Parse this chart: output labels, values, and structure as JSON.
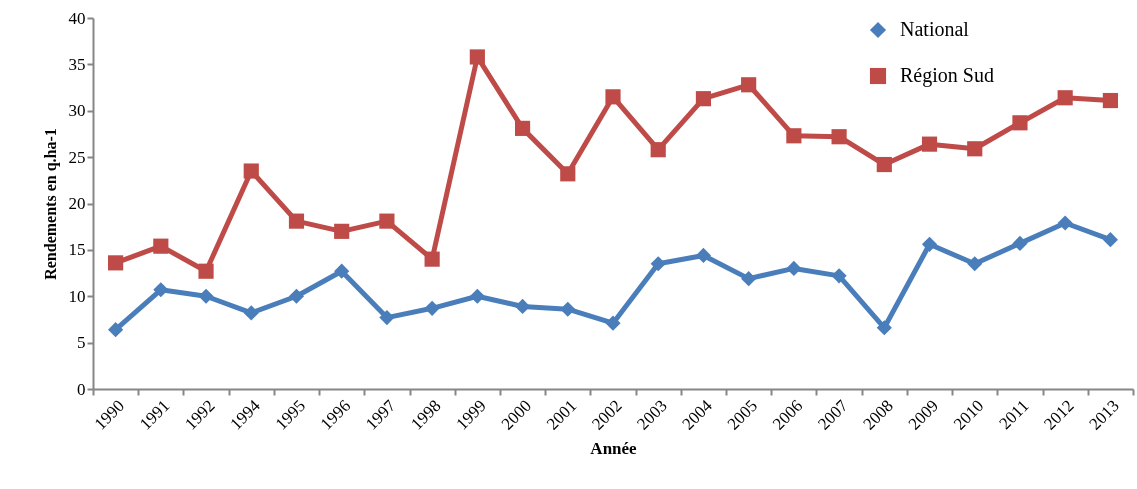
{
  "chart_data": {
    "type": "line",
    "xlabel": "Année",
    "ylabel": "Rendements en q.ha-1",
    "categories": [
      "1990",
      "1991",
      "1992",
      "1994",
      "1995",
      "1996",
      "1997",
      "1998",
      "1999",
      "2000",
      "2001",
      "2002",
      "2003",
      "2004",
      "2005",
      "2006",
      "2007",
      "2008",
      "2009",
      "2010",
      "2011",
      "2012",
      "2013"
    ],
    "series": [
      {
        "name": "National",
        "color": "#4a7ebb",
        "marker": "diamond",
        "values": [
          6.4,
          10.7,
          10.0,
          8.2,
          10.0,
          12.7,
          7.7,
          8.7,
          10.0,
          8.9,
          8.6,
          7.1,
          13.5,
          14.4,
          11.9,
          13.0,
          12.2,
          6.6,
          15.6,
          13.5,
          15.7,
          17.9,
          16.1
        ]
      },
      {
        "name": "Région Sud",
        "color": "#be4b48",
        "marker": "square",
        "values": [
          13.6,
          15.4,
          12.7,
          23.5,
          18.1,
          17.0,
          18.1,
          14.0,
          35.8,
          28.1,
          23.2,
          31.5,
          25.8,
          31.3,
          32.8,
          27.3,
          27.2,
          24.2,
          26.4,
          25.9,
          28.7,
          31.4,
          31.1
        ]
      }
    ],
    "ylim": [
      0,
      40
    ],
    "yticks": [
      0,
      5,
      10,
      15,
      20,
      25,
      30,
      35,
      40
    ],
    "grid": false,
    "legend": "top right"
  }
}
